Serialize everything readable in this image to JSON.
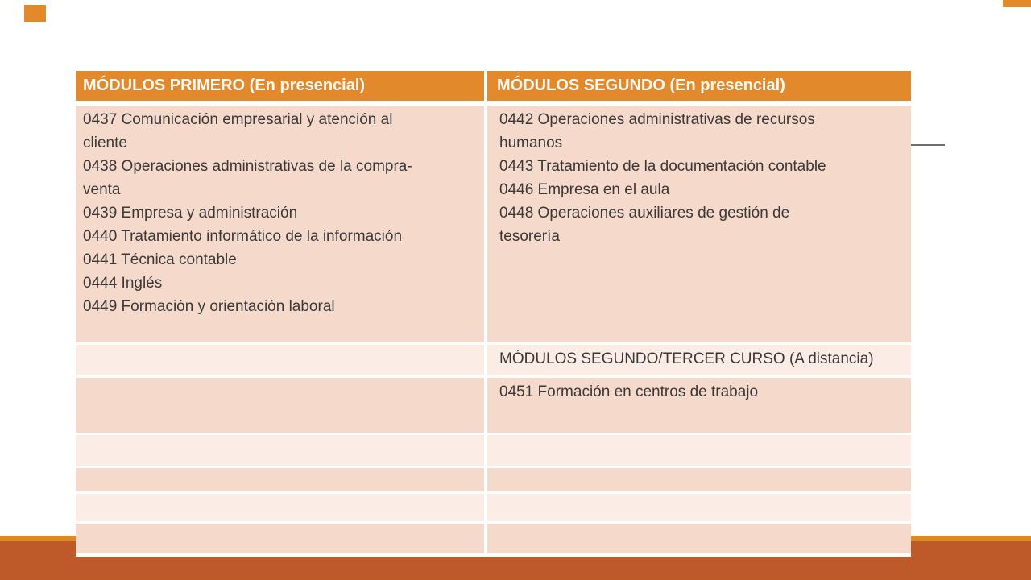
{
  "slide": {
    "colors": {
      "background": "#FFFFFF",
      "accent_orange": "#E1892B",
      "band_dark": "#BE592A",
      "band_amber": "#DC8A26",
      "row_dark": "#F5DACC",
      "row_light": "#FBEDE6",
      "header_text": "#FDF8F0",
      "body_text": "#3B3838",
      "gray_line": "#6F6F6F"
    }
  },
  "table": {
    "headers": [
      "MÓDULOS PRIMERO (En presencial)",
      "MÓDULOS SEGUNDO (En presencial)"
    ],
    "rows": [
      {
        "col1_lines": [
          "0437 Comunicación empresarial y atención al",
          "cliente",
          "0438 Operaciones administrativas de la compra-",
          "venta",
          "0439 Empresa y administración",
          "0440 Tratamiento informático de la información",
          "0441 Técnica contable",
          "0444 Inglés",
          "0449 Formación y orientación laboral"
        ],
        "col2_lines": [
          "0442 Operaciones administrativas de recursos",
          "humanos",
          "0443 Tratamiento de la documentación contable",
          "0446 Empresa en el aula",
          "0448 Operaciones auxiliares de gestión de",
          "tesorería"
        ]
      },
      {
        "col1_lines": [],
        "col2_lines": [
          "MÓDULOS SEGUNDO/TERCER CURSO (A distancia)"
        ]
      },
      {
        "col1_lines": [],
        "col2_lines": [
          "0451 Formación en centros de trabajo"
        ]
      },
      {
        "col1_lines": [],
        "col2_lines": []
      },
      {
        "col1_lines": [],
        "col2_lines": []
      },
      {
        "col1_lines": [],
        "col2_lines": []
      },
      {
        "col1_lines": [],
        "col2_lines": []
      }
    ]
  }
}
